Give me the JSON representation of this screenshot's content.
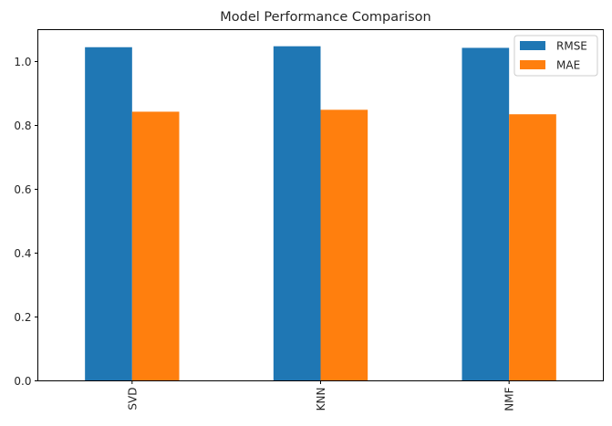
{
  "chart_data": {
    "type": "bar",
    "title": "Model Performance Comparison",
    "xlabel": "",
    "ylabel": "",
    "categories": [
      "SVD",
      "KNN",
      "NMF"
    ],
    "series": [
      {
        "name": "RMSE",
        "color": "#1f77b4",
        "values": [
          1.045,
          1.048,
          1.043
        ]
      },
      {
        "name": "MAE",
        "color": "#ff7f0e",
        "values": [
          0.843,
          0.849,
          0.835
        ]
      }
    ],
    "ylim": [
      0,
      1.1
    ],
    "yticks": [
      "0.0",
      "0.2",
      "0.4",
      "0.6",
      "0.8",
      "1.0"
    ],
    "ytick_values": [
      0,
      0.2,
      0.4,
      0.6,
      0.8,
      1.0
    ],
    "legend_position": "top-right",
    "grid": false
  }
}
